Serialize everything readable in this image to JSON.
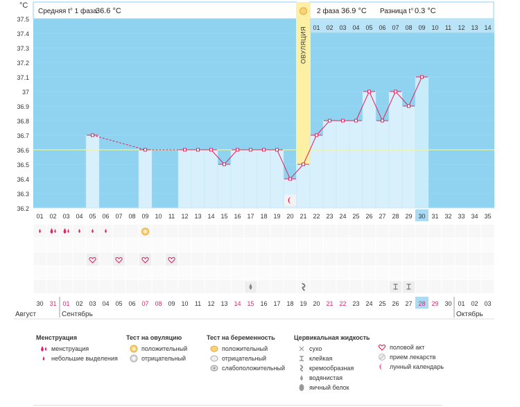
{
  "header": {
    "unit_label": "°C",
    "phase1_label": "Средняя t° 1 фаза",
    "phase1_value": "36.6 °C",
    "phase2_label": "2 фаза",
    "phase2_value": "36.9 °C",
    "diff_label": "Разница t°",
    "diff_value": "0.3 °C",
    "ovulation_label": "ОВУЛЯЦИЯ"
  },
  "colors": {
    "phase1_bg": "#ffffff",
    "chart_bg": "#8fd3f1",
    "bar_fill": "#d8f0fc",
    "line": "#e0245e",
    "ovulation": "#fdf0a4",
    "coverline": "#f3f6a6",
    "today": "#a9dcf4"
  },
  "chart_data": {
    "type": "line",
    "y_ticks": [
      "36.2",
      "36.3",
      "36.4",
      "36.5",
      "36.6",
      "36.7",
      "36.8",
      "36.9",
      "37",
      "37.1",
      "37.2",
      "37.3",
      "37.4",
      "37.5"
    ],
    "ylim": [
      36.2,
      37.5
    ],
    "cycle_days": [
      "01",
      "02",
      "03",
      "04",
      "05",
      "06",
      "07",
      "08",
      "09",
      "10",
      "11",
      "12",
      "13",
      "14",
      "15",
      "16",
      "17",
      "18",
      "19",
      "20",
      "21",
      "22",
      "23",
      "24",
      "25",
      "26",
      "27",
      "28",
      "29",
      "30",
      "31",
      "32",
      "33",
      "34",
      "35"
    ],
    "post_ovulation_days": [
      "01",
      "02",
      "03",
      "04",
      "05",
      "06",
      "07",
      "08",
      "09",
      "10",
      "11",
      "12",
      "13",
      "14"
    ],
    "temperatures": [
      null,
      null,
      null,
      null,
      36.7,
      null,
      null,
      null,
      36.6,
      null,
      null,
      36.6,
      36.6,
      36.6,
      36.5,
      36.6,
      36.6,
      36.6,
      36.6,
      36.4,
      36.5,
      36.7,
      36.8,
      36.8,
      36.8,
      37.0,
      36.8,
      37.0,
      36.9,
      37.1,
      null,
      null,
      null,
      null,
      null
    ],
    "coverline": 36.6,
    "ovulation_day": "21",
    "today_day": "30"
  },
  "calendar": {
    "dates": [
      "30",
      "31",
      "01",
      "02",
      "03",
      "04",
      "05",
      "06",
      "07",
      "08",
      "09",
      "10",
      "11",
      "12",
      "13",
      "14",
      "15",
      "16",
      "17",
      "18",
      "19",
      "20",
      "21",
      "22",
      "23",
      "24",
      "25",
      "26",
      "27",
      "28",
      "29",
      "30",
      "01",
      "02",
      "03"
    ],
    "highlighted": [
      "31",
      "01",
      "07",
      "08",
      "14",
      "15",
      "21",
      "22",
      "28",
      "29"
    ],
    "months": [
      {
        "label": "Август"
      },
      {
        "label": "Сентябрь"
      },
      {
        "label": "Октябрь"
      }
    ],
    "today_date": "28"
  },
  "legend": {
    "menstruation": {
      "title": "Менструация",
      "items": [
        "менструация",
        "небольшие выделения"
      ]
    },
    "ovulation_test": {
      "title": "Тест на овуляцию",
      "items": [
        "положительный",
        "отрицательный"
      ]
    },
    "pregnancy_test": {
      "title": "Тест на беременность",
      "items": [
        "положительный",
        "отрицательный",
        "слабоположительный"
      ]
    },
    "cervical_fluid": {
      "title": "Цервикальная жидкость",
      "items": [
        "сухо",
        "клейкая",
        "кремообразная",
        "водянистая",
        "яичный белок"
      ]
    },
    "other": {
      "items": [
        "половой акт",
        "прием лекарств",
        "лунный календарь"
      ]
    }
  }
}
